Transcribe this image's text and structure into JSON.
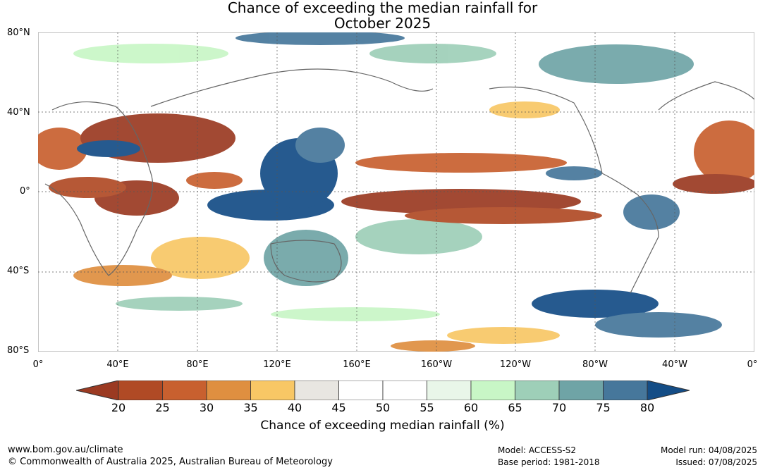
{
  "title": {
    "line1": "Chance of exceeding the median rainfall for",
    "line2": "October 2025"
  },
  "map": {
    "lat_labels": [
      "80°N",
      "40°N",
      "0°",
      "40°S",
      "80°S"
    ],
    "lon_labels": [
      "0°",
      "40°E",
      "80°E",
      "120°E",
      "160°E",
      "160°W",
      "120°W",
      "80°W",
      "40°W",
      "0°"
    ]
  },
  "colorbar": {
    "ticks": [
      "20",
      "25",
      "30",
      "35",
      "40",
      "45",
      "50",
      "55",
      "60",
      "65",
      "70",
      "75",
      "80"
    ],
    "colors": [
      "#9b3a22",
      "#b04a25",
      "#c8602f",
      "#df8f40",
      "#f8c765",
      "#e8e6e1",
      "#ffffff",
      "#ffffff",
      "#e9f6e9",
      "#c8f6c6",
      "#9ecfb8",
      "#6fa4a6",
      "#46779b",
      "#144d86"
    ],
    "label": "Chance of exceeding median rainfall (%)"
  },
  "footer": {
    "website": "www.bom.gov.au/climate",
    "copyright": "© Commonwealth of Australia 2025, Australian Bureau of Meteorology",
    "model": "Model: ACCESS-S2",
    "base_period": "Base period: 1981-2018",
    "model_run": "Model run: 04/08/2025",
    "issued": "Issued: 07/08/2025"
  }
}
